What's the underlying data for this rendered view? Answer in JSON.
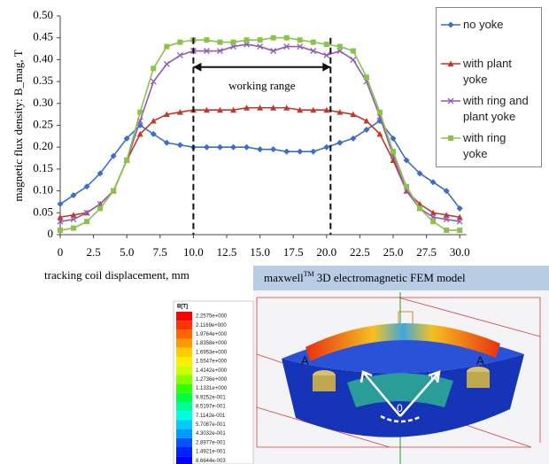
{
  "chart_data": {
    "type": "line",
    "y_label": "magnetic flux density: B_mag, T",
    "x_label": "tracking coil displacement, mm",
    "x": [
      0,
      1,
      2,
      3,
      4,
      5,
      6,
      7,
      8,
      9,
      10,
      11,
      12,
      13,
      14,
      15,
      16,
      17,
      18,
      19,
      20,
      21,
      22,
      23,
      24,
      25,
      26,
      27,
      28,
      29,
      30
    ],
    "series": [
      {
        "name": "no yoke",
        "color": "#3a6fc4",
        "marker": "diamond",
        "values": [
          0.07,
          0.09,
          0.11,
          0.14,
          0.18,
          0.22,
          0.25,
          0.23,
          0.21,
          0.205,
          0.2,
          0.2,
          0.2,
          0.2,
          0.2,
          0.195,
          0.195,
          0.19,
          0.19,
          0.19,
          0.2,
          0.21,
          0.22,
          0.24,
          0.26,
          0.22,
          0.17,
          0.14,
          0.12,
          0.1,
          0.06
        ]
      },
      {
        "name": "with plant yoke",
        "color": "#c0392b",
        "marker": "triangle",
        "values": [
          0.04,
          0.045,
          0.05,
          0.07,
          0.1,
          0.17,
          0.23,
          0.26,
          0.275,
          0.28,
          0.285,
          0.285,
          0.285,
          0.285,
          0.29,
          0.29,
          0.29,
          0.29,
          0.285,
          0.285,
          0.285,
          0.28,
          0.275,
          0.26,
          0.23,
          0.17,
          0.1,
          0.07,
          0.05,
          0.045,
          0.04
        ]
      },
      {
        "name": "with ring and plant yoke",
        "color": "#8e5bb5",
        "marker": "cross",
        "values": [
          0.03,
          0.035,
          0.05,
          0.07,
          0.1,
          0.17,
          0.26,
          0.35,
          0.39,
          0.41,
          0.42,
          0.42,
          0.42,
          0.43,
          0.435,
          0.43,
          0.42,
          0.43,
          0.43,
          0.42,
          0.41,
          0.42,
          0.4,
          0.35,
          0.27,
          0.18,
          0.1,
          0.06,
          0.04,
          0.035,
          0.03
        ]
      },
      {
        "name": "with ring yoke",
        "color": "#8bc34a",
        "marker": "square",
        "values": [
          0.01,
          0.015,
          0.03,
          0.06,
          0.1,
          0.17,
          0.28,
          0.38,
          0.43,
          0.44,
          0.445,
          0.445,
          0.44,
          0.44,
          0.445,
          0.445,
          0.45,
          0.45,
          0.445,
          0.44,
          0.435,
          0.43,
          0.42,
          0.36,
          0.28,
          0.19,
          0.11,
          0.06,
          0.03,
          0.01,
          0.01
        ]
      }
    ],
    "xlim": [
      0,
      30.5
    ],
    "ylim": [
      0,
      0.5
    ],
    "xticks": [
      0,
      2.5,
      {
        "value": 5,
        "label": "5.0"
      },
      7.5,
      {
        "value": 10,
        "label": "10.0"
      },
      12.5,
      {
        "value": 15,
        "label": "15.0"
      },
      17.5,
      {
        "value": 20,
        "label": "20.0"
      },
      22.5,
      {
        "value": 25,
        "label": "25.0"
      },
      27.5,
      {
        "value": 30,
        "label": "30.0"
      }
    ],
    "yticks": [
      0,
      0.05,
      {
        "value": 0.1,
        "label": "0.10"
      },
      0.15,
      {
        "value": 0.2,
        "label": "0.20"
      },
      0.25,
      {
        "value": 0.3,
        "label": "0.30"
      },
      0.35,
      {
        "value": 0.4,
        "label": "0.40"
      },
      0.45,
      {
        "value": 0.5,
        "label": "0.50"
      }
    ],
    "grid": false,
    "legend": "right",
    "annotation": {
      "text": "working range",
      "x": [
        10,
        20.3
      ],
      "y": 0.383
    }
  },
  "figure": {
    "title": "maxwell",
    "title_sup": "TM",
    "title_rest": "3D   electromagnetic FEM model",
    "scale_title": "B[T]",
    "scale_labels": [
      "2.2575e+000",
      "2.1169e+000",
      "1.9764e+000",
      "1.8358e+000",
      "1.6953e+000",
      "1.5547e+000",
      "1.4142e+000",
      "1.2736e+000",
      "1.1331e+000",
      "9.9252e-001",
      "8.5197e-001",
      "7.1142e-001",
      "5.7087e-001",
      "4.3032e-001",
      "2.8977e-001",
      "1.4921e-001",
      "8.6644e-003"
    ],
    "model_labels": [
      "A",
      "A",
      "R",
      "0"
    ]
  }
}
